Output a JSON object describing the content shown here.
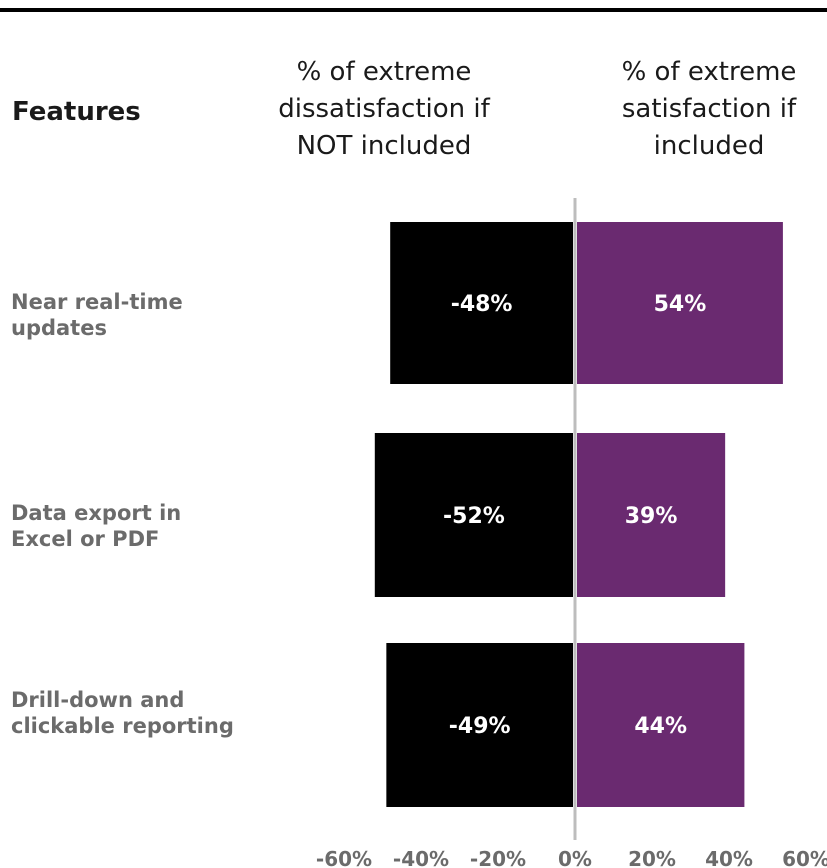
{
  "header": {
    "features_label": "Features",
    "negative_column": "% of extreme\ndissatisfaction if\nNOT included",
    "positive_column": "% of extreme\nsatisfaction if\nincluded"
  },
  "colors": {
    "negative": "#000000",
    "positive": "#6a2a70",
    "axis_line": "#bdbdbd",
    "category_text": "#6b6b6b",
    "tick_text": "#6b6b6b"
  },
  "chart_data": {
    "type": "bar",
    "orientation": "horizontal-diverging",
    "categories": [
      "Near real-time\nupdates",
      "Data export in\nExcel or PDF",
      "Drill-down and\nclickable reporting"
    ],
    "series": [
      {
        "values": [
          -48,
          -52,
          -49
        ],
        "labels": [
          "-48%",
          "-52%",
          "-49%"
        ]
      },
      {
        "values": [
          54,
          39,
          44
        ],
        "labels": [
          "54%",
          "39%",
          "44%"
        ]
      }
    ],
    "xlim": [
      -60,
      60
    ],
    "x_ticks": [
      -60,
      -40,
      -20,
      0,
      20,
      40,
      60
    ],
    "x_tick_labels": [
      "-60%",
      "-40%",
      "-20%",
      "0%",
      "20%",
      "40%",
      "60%"
    ],
    "grid": false,
    "legend": "none"
  }
}
